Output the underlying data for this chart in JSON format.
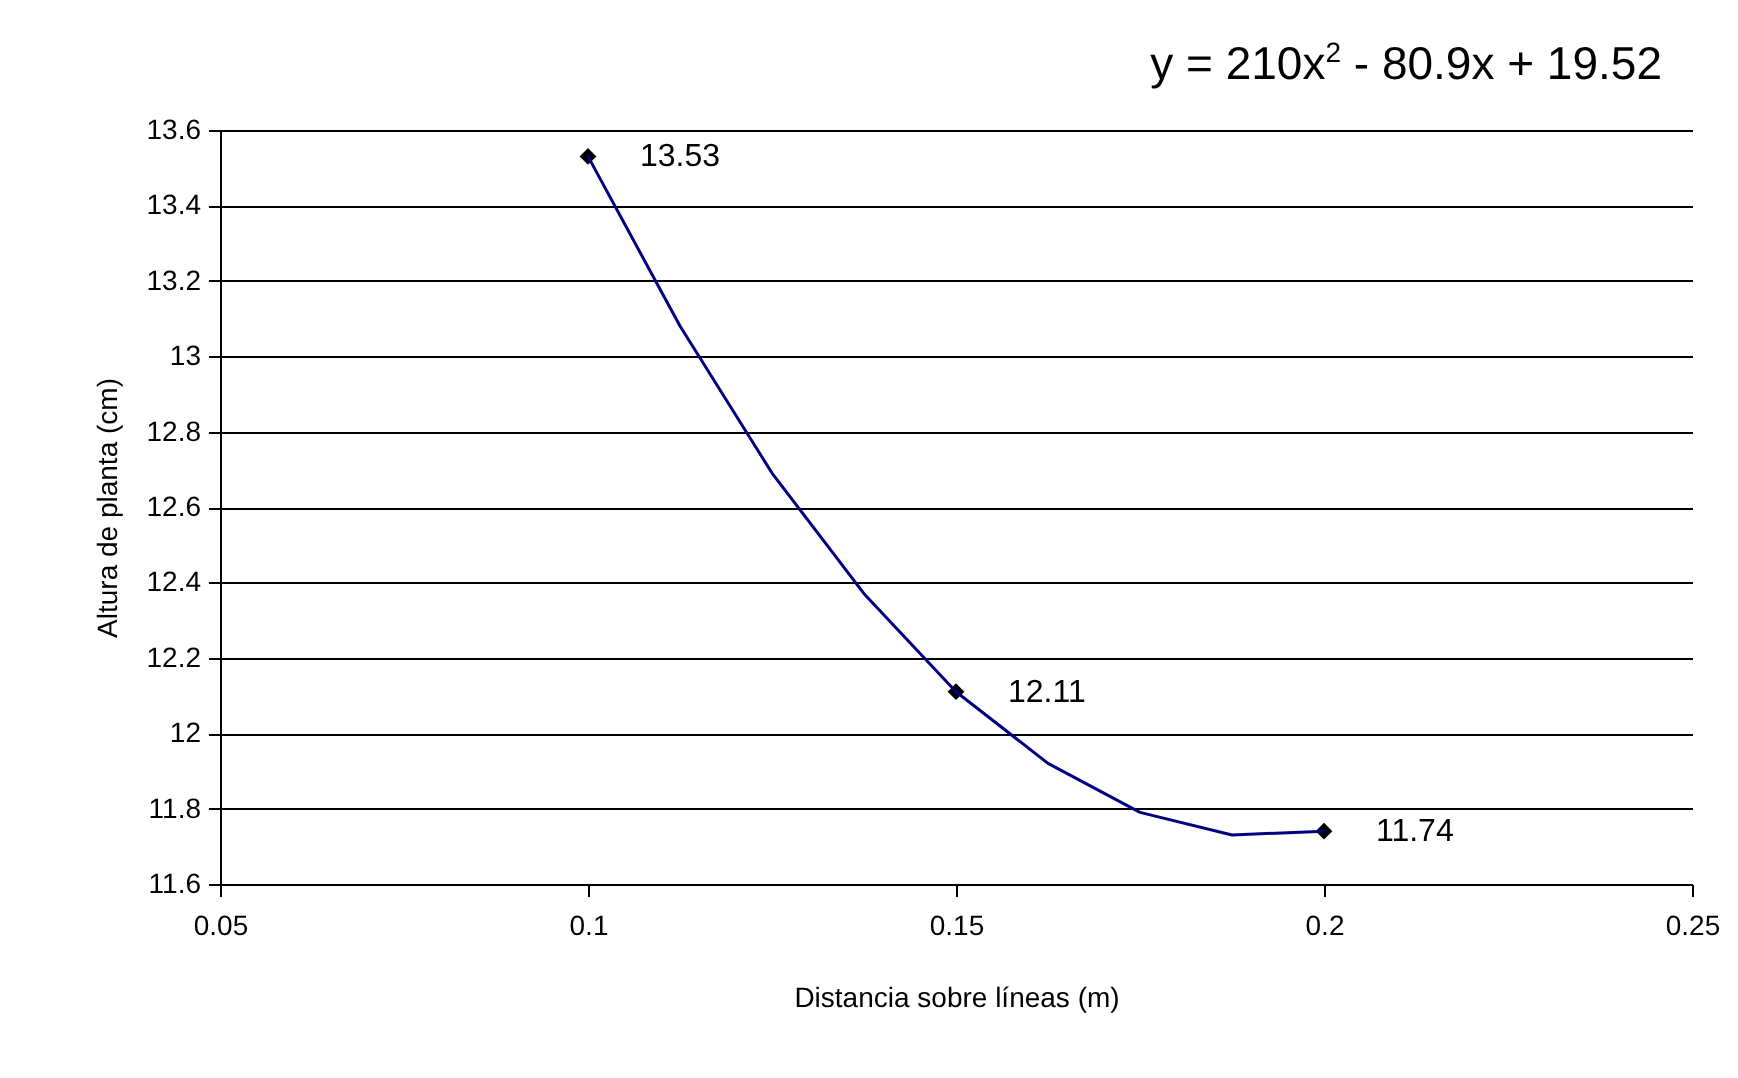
{
  "chart_data": {
    "type": "scatter",
    "xlabel": "Distancia sobre líneas (m)",
    "ylabel": "Altura de planta (cm)",
    "annotations": [
      "y = 210x$^{2}$ - 80.9x + 19.52"
    ],
    "x": [
      0.1,
      0.15,
      0.2
    ],
    "series": [
      {
        "color": "#000000",
        "marker": "diamond",
        "values": [
          13.53,
          12.11,
          11.74
        ],
        "value_labels": [
          "13.53",
          "12.11",
          "11.74"
        ]
      },
      {
        "type": "line",
        "color": "#000080",
        "marker": "none",
        "line_style": "solid",
        "x": [
          0.1,
          0.1125,
          0.125,
          0.1375,
          0.15,
          0.1625,
          0.175,
          0.1875,
          0.2
        ],
        "values": [
          13.53,
          13.08,
          12.69,
          12.37,
          12.11,
          11.92,
          11.79,
          11.73,
          11.74
        ]
      }
    ],
    "xlim": [
      0.05,
      0.25
    ],
    "xticks": [
      0.05,
      0.1,
      0.15,
      0.2,
      0.25
    ],
    "ylim": [
      11.6,
      13.6
    ],
    "yticks": [
      11.6,
      11.8,
      12,
      12.2,
      12.4,
      12.6,
      12.8,
      13,
      13.2,
      13.4,
      13.6
    ],
    "grid": "y"
  }
}
